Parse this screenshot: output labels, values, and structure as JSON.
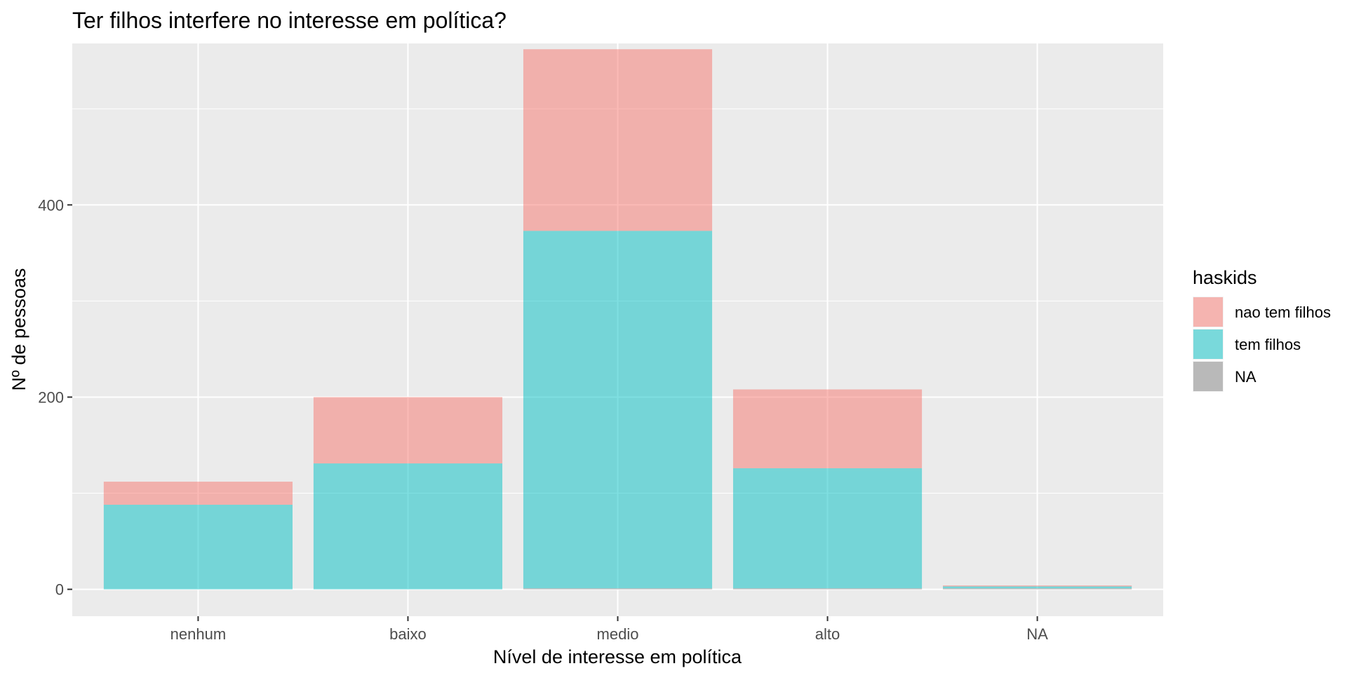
{
  "chart_data": {
    "type": "bar",
    "stacked": true,
    "title": "Ter filhos interfere no interesse em política?",
    "xlabel": "Nível de interesse em política",
    "ylabel": "Nº de pessoas",
    "categories": [
      "nenhum",
      "baixo",
      "medio",
      "alto",
      "NA"
    ],
    "series": [
      {
        "name": "nao tem filhos",
        "color": "#F8766D",
        "values": [
          24,
          69,
          189,
          82,
          1
        ]
      },
      {
        "name": "tem filhos",
        "color": "#00BFC4",
        "values": [
          88,
          131,
          372,
          125,
          2
        ]
      },
      {
        "name": "NA",
        "color": "#7F7F7F",
        "values": [
          0,
          0,
          1,
          1,
          1
        ]
      }
    ],
    "bar_opacity": 0.5,
    "ylim": [
      -28,
      568
    ],
    "yticks": [
      0,
      200,
      400
    ],
    "grid": true,
    "legend": {
      "title": "haskids",
      "position": "right"
    }
  }
}
